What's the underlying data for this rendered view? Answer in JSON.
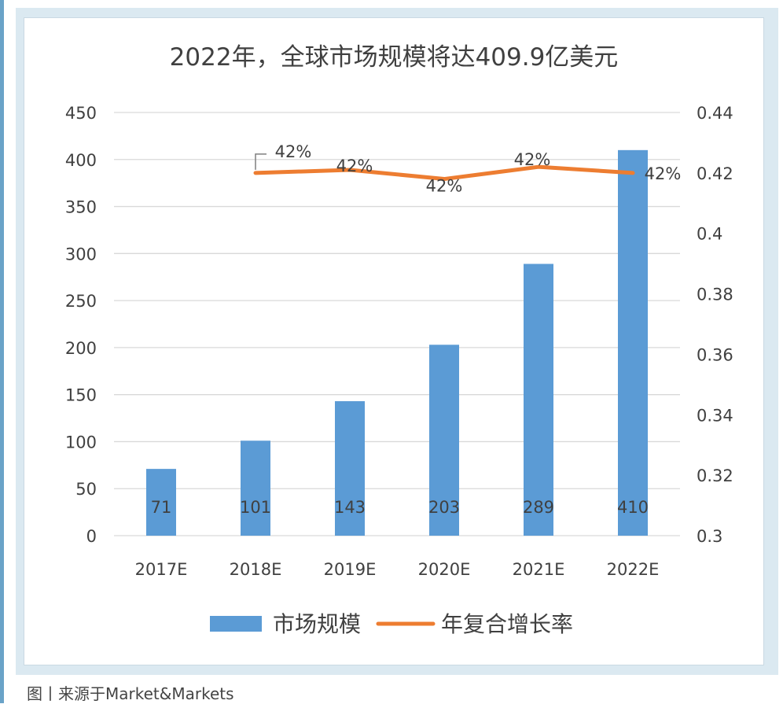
{
  "caption": "图丨来源于Market&Markets",
  "chart_data": {
    "type": "bar",
    "title": "2022年，全球市场规模将达409.9亿美元",
    "categories": [
      "2017E",
      "2018E",
      "2019E",
      "2020E",
      "2021E",
      "2022E"
    ],
    "series": [
      {
        "name": "市场规模",
        "kind": "bar",
        "axis": "left",
        "values": [
          71,
          101,
          143,
          203,
          289,
          410
        ],
        "labels": [
          "71",
          "101",
          "143",
          "203",
          "289",
          "410"
        ]
      },
      {
        "name": "年复合增长率",
        "kind": "line",
        "axis": "right",
        "values": [
          null,
          0.42,
          0.421,
          0.418,
          0.422,
          0.42
        ],
        "labels": [
          null,
          "42%",
          "42%",
          "42%",
          "42%",
          "42%"
        ]
      }
    ],
    "ylim_left": [
      0,
      450
    ],
    "yticks_left": [
      "0",
      "50",
      "100",
      "150",
      "200",
      "250",
      "300",
      "350",
      "400",
      "450"
    ],
    "ylim_right": [
      0.3,
      0.44
    ],
    "yticks_right": [
      "0.3",
      "0.32",
      "0.34",
      "0.36",
      "0.38",
      "0.4",
      "0.42",
      "0.44"
    ],
    "grid": true,
    "legend": "bottom",
    "colors": {
      "bar": "#5b9bd5",
      "line": "#ed7d31",
      "grid": "#d9d9d9",
      "text": "#404040"
    }
  }
}
